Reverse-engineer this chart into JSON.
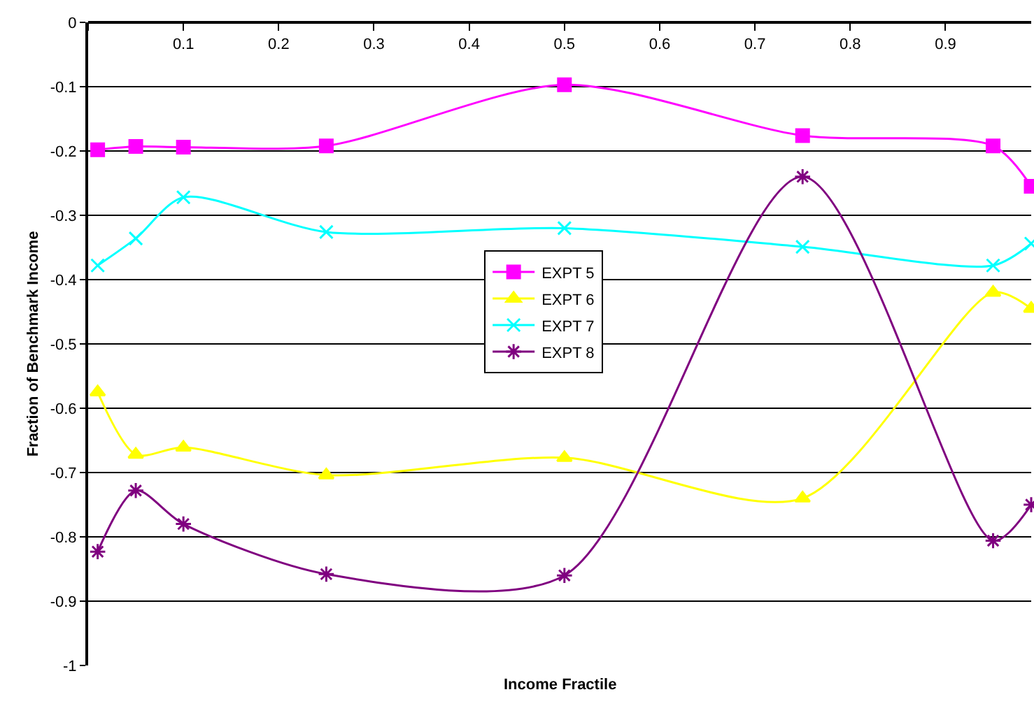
{
  "chart_data": {
    "type": "line",
    "xlabel": "Income Fractile",
    "ylabel": "Fraction of Benchmark Income",
    "x": [
      0.01,
      0.05,
      0.1,
      0.25,
      0.5,
      0.75,
      0.95,
      0.99
    ],
    "series": [
      {
        "name": "EXPT 5",
        "color": "#ff00ff",
        "marker": "square",
        "values": [
          -0.198,
          -0.193,
          -0.194,
          -0.192,
          -0.097,
          -0.176,
          -0.192,
          -0.255
        ]
      },
      {
        "name": "EXPT 6",
        "color": "#ffff00",
        "marker": "triangle",
        "values": [
          -0.575,
          -0.672,
          -0.661,
          -0.704,
          -0.677,
          -0.74,
          -0.42,
          -0.445
        ]
      },
      {
        "name": "EXPT 7",
        "color": "#00ffff",
        "marker": "cross",
        "values": [
          -0.378,
          -0.336,
          -0.272,
          -0.326,
          -0.32,
          -0.349,
          -0.378,
          -0.344
        ]
      },
      {
        "name": "EXPT 8",
        "color": "#800080",
        "marker": "cross",
        "values": [
          -0.823,
          -0.728,
          -0.78,
          -0.858,
          -0.86,
          -0.24,
          -0.806,
          -0.75
        ]
      }
    ],
    "xlim": [
      0,
      0.99
    ],
    "xticks": [
      {
        "value": 0,
        "label": null
      },
      0.1,
      0.2,
      0.3,
      0.4,
      0.5,
      0.6,
      0.7,
      0.8,
      0.9
    ],
    "ylim": [
      -1,
      0
    ],
    "yticks": [
      0,
      -0.1,
      -0.2,
      -0.3,
      -0.4,
      -0.5,
      -0.6,
      -0.7,
      -0.8,
      -0.9,
      -1
    ],
    "grid": "y",
    "legend": "center",
    "line_style": "solid"
  }
}
